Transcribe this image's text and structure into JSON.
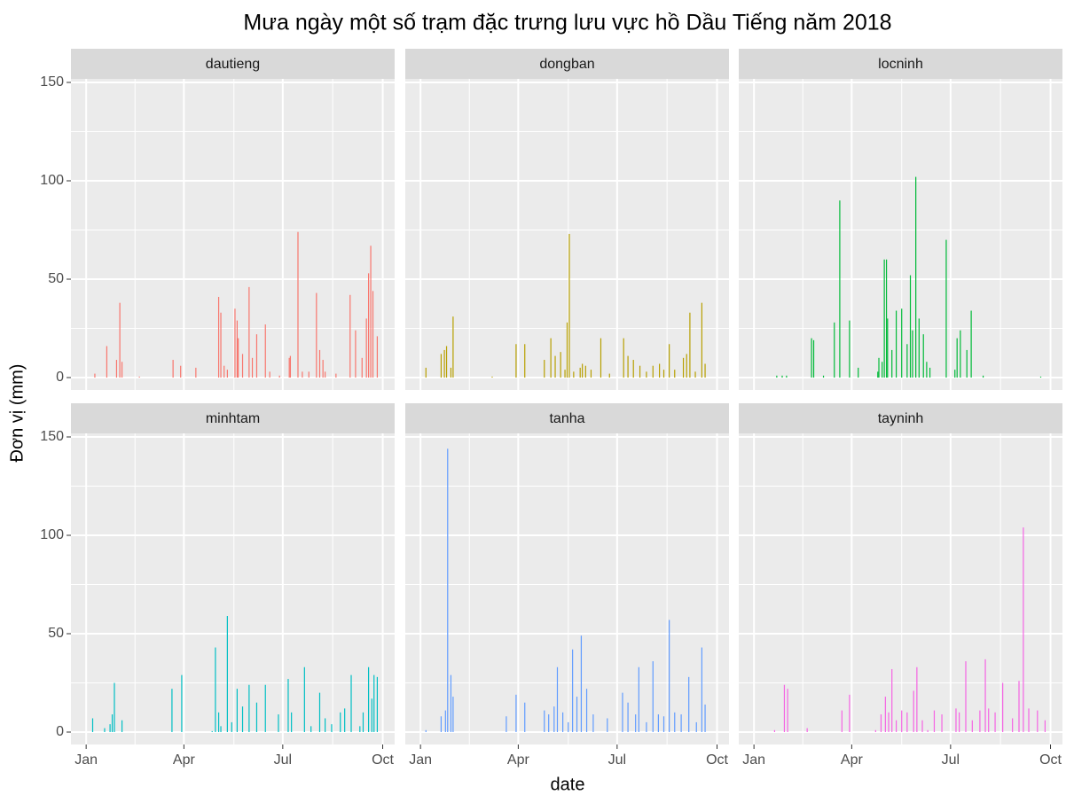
{
  "chart_data": {
    "type": "bar",
    "title": "Mưa ngày một số trạm đặc trưng lưu vực hồ Dầu Tiếng năm 2018",
    "xlabel": "date",
    "ylabel": "Đơn vị (mm)",
    "xlim": [
      -13,
      285
    ],
    "ylim": [
      -6.3,
      151.8
    ],
    "xticks": [
      {
        "value": 1,
        "label": "Jan"
      },
      {
        "value": 91,
        "label": "Apr"
      },
      {
        "value": 182,
        "label": "Jul"
      },
      {
        "value": 274,
        "label": "Oct"
      }
    ],
    "x_minor_ticks": [
      46,
      137,
      228
    ],
    "yticks": [
      0,
      50,
      100,
      150
    ],
    "y_minor_ticks": [
      25,
      75,
      125
    ],
    "grid": true,
    "series": [
      {
        "name": "dautieng",
        "color": "#F8766D",
        "x": [
          9,
          20,
          29,
          32,
          34,
          50,
          81,
          88,
          102,
          123,
          125,
          128,
          131,
          138,
          140,
          141,
          145,
          151,
          154,
          158,
          166,
          170,
          179,
          188,
          189,
          196,
          200,
          206,
          213,
          216,
          219,
          221,
          231,
          244,
          249,
          255,
          259,
          261,
          263,
          265,
          269
        ],
        "values": [
          2,
          16,
          9,
          38,
          8,
          0.5,
          9,
          6,
          5,
          41,
          33,
          6,
          4,
          35,
          29,
          20,
          12,
          46,
          10,
          22,
          27,
          3,
          1,
          10,
          11,
          74,
          3,
          3,
          43,
          14,
          9,
          3,
          2,
          42,
          24,
          10,
          30,
          53,
          67,
          44,
          21
        ]
      },
      {
        "name": "dongban",
        "color": "#B79F00",
        "x": [
          6,
          20,
          23,
          25,
          29,
          31,
          67,
          89,
          97,
          115,
          121,
          125,
          130,
          134,
          136,
          138,
          142,
          148,
          150,
          153,
          158,
          167,
          175,
          188,
          192,
          197,
          203,
          209,
          215,
          221,
          225,
          230,
          235,
          243,
          246,
          249,
          254,
          260,
          263
        ],
        "values": [
          5,
          12,
          14,
          16,
          5,
          31,
          0.5,
          17,
          17,
          9,
          20,
          11,
          13,
          4,
          28,
          73,
          3,
          5,
          7,
          6,
          4,
          20,
          2,
          20,
          11,
          9,
          6,
          3,
          6,
          7,
          4,
          17,
          4,
          10,
          12,
          33,
          3,
          38,
          7
        ]
      },
      {
        "name": "locninh",
        "color": "#00BA38",
        "x": [
          22,
          27,
          31,
          54,
          56,
          65,
          75,
          80,
          89,
          97,
          115,
          116,
          119,
          121,
          123,
          124,
          128,
          132,
          137,
          142,
          145,
          147,
          150,
          153,
          157,
          160,
          163,
          178,
          186,
          188,
          191,
          197,
          201,
          212,
          265
        ],
        "values": [
          1,
          1,
          1,
          20,
          19,
          1,
          28,
          90,
          29,
          5,
          3,
          10,
          8,
          60,
          60,
          30,
          14,
          34,
          35,
          17,
          52,
          24,
          102,
          30,
          22,
          8,
          5,
          70,
          4,
          20,
          24,
          14,
          34,
          1,
          0.5
        ]
      },
      {
        "name": "minhtam",
        "color": "#00BFC4",
        "x": [
          7,
          18,
          23,
          25,
          27,
          34,
          80,
          89,
          117,
          120,
          123,
          125,
          131,
          135,
          140,
          145,
          151,
          158,
          166,
          178,
          187,
          190,
          202,
          208,
          216,
          221,
          227,
          235,
          239,
          245,
          253,
          256,
          261,
          264,
          266,
          269
        ],
        "values": [
          7,
          2,
          4,
          9,
          25,
          6,
          22,
          29,
          0.5,
          43,
          10,
          3,
          59,
          5,
          22,
          13,
          24,
          15,
          24,
          9,
          27,
          10,
          33,
          3,
          20,
          7,
          4,
          10,
          12,
          29,
          3,
          10,
          33,
          17,
          29,
          28
        ]
      },
      {
        "name": "tanha",
        "color": "#619CFF",
        "x": [
          6,
          20,
          24,
          26,
          29,
          31,
          80,
          89,
          97,
          115,
          119,
          124,
          127,
          132,
          137,
          141,
          145,
          149,
          154,
          160,
          173,
          187,
          192,
          199,
          202,
          209,
          215,
          220,
          225,
          230,
          235,
          241,
          248,
          255,
          260,
          263
        ],
        "values": [
          1,
          8,
          11,
          144,
          29,
          18,
          8,
          19,
          15,
          11,
          9,
          13,
          33,
          10,
          5,
          42,
          18,
          49,
          22,
          9,
          7,
          20,
          15,
          9,
          33,
          5,
          36,
          9,
          8,
          57,
          10,
          9,
          28,
          5,
          43,
          14
        ]
      },
      {
        "name": "tayninh",
        "color": "#F564E3",
        "x": [
          20,
          29,
          32,
          50,
          82,
          89,
          113,
          118,
          122,
          125,
          128,
          132,
          137,
          142,
          148,
          151,
          156,
          161,
          167,
          174,
          187,
          190,
          196,
          202,
          209,
          214,
          217,
          223,
          230,
          239,
          245,
          249,
          254,
          262,
          269
        ],
        "values": [
          1,
          24,
          22,
          2,
          11,
          19,
          1,
          9,
          18,
          10,
          32,
          6,
          11,
          10,
          21,
          33,
          6,
          1,
          11,
          9,
          12,
          10,
          36,
          6,
          11,
          37,
          12,
          10,
          25,
          7,
          26,
          104,
          12,
          11,
          6
        ]
      }
    ]
  }
}
